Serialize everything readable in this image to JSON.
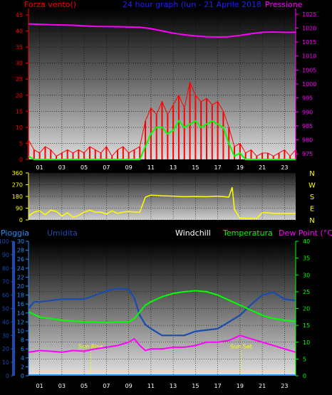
{
  "colors": {
    "wind": "#ff0000",
    "pressure": "#ff00ff",
    "title": "#2020ff",
    "windchill": "#ffffff",
    "temperature": "#00ff00",
    "dewpoint": "#ff00ff",
    "humidity": "#1a4bb0",
    "rain": "#1e90ff",
    "direction": "#ffff00",
    "sun": "#ffff00"
  },
  "chart_data": [
    {
      "type": "line",
      "title": "24 hour graph (lun - 21 Aprile 2018",
      "left_axis_label": "Forza vento()",
      "right_axis_label": "Pressione",
      "y_left_ticks": [
        "0",
        "5",
        "10",
        "15",
        "20",
        "25",
        "30",
        "35",
        "40",
        "45"
      ],
      "y_right_ticks": [
        "975",
        "980",
        "985",
        "990",
        "995",
        "1000",
        "1005",
        "1010",
        "1015",
        "1020",
        "1025"
      ],
      "x_ticks": [
        "01",
        "03",
        "05",
        "07",
        "09",
        "11",
        "13",
        "15",
        "17",
        "19",
        "21",
        "23"
      ],
      "ylim_left": [
        0,
        47
      ],
      "ylim_right": [
        973,
        1027
      ],
      "series": [
        {
          "key": "gust",
          "x": [
            0,
            0.5,
            1,
            1.5,
            2,
            2.5,
            3,
            3.5,
            4,
            4.5,
            5,
            5.5,
            6,
            6.5,
            7,
            7.5,
            8,
            8.5,
            9,
            9.5,
            10,
            10.5,
            11,
            11.5,
            12,
            12.5,
            13,
            13.5,
            14,
            14.5,
            15,
            15.5,
            16,
            16.5,
            17,
            17.5,
            18,
            18.5,
            19,
            19.5,
            20,
            20.5,
            21,
            21.5,
            22,
            22.5,
            23,
            23.5,
            24
          ],
          "values": [
            6,
            3,
            2,
            4,
            3,
            1,
            2,
            3,
            2,
            3,
            2,
            4,
            3,
            2,
            4,
            1,
            3,
            4,
            2,
            3,
            4,
            12,
            16,
            14,
            18,
            14,
            17,
            20,
            16,
            24,
            20,
            18,
            19,
            17,
            18,
            15,
            10,
            4,
            5,
            2,
            3,
            1,
            2,
            2,
            1,
            2,
            3,
            1,
            3
          ]
        },
        {
          "key": "wind",
          "x": [
            0,
            0.5,
            1,
            1.5,
            2,
            2.5,
            3,
            3.5,
            4,
            4.5,
            5,
            5.5,
            6,
            6.5,
            7,
            7.5,
            8,
            8.5,
            9,
            9.5,
            10,
            10.5,
            11,
            11.5,
            12,
            12.5,
            13,
            13.5,
            14,
            14.5,
            15,
            15.5,
            16,
            16.5,
            17,
            17.5,
            18,
            18.5,
            19,
            19.5,
            20,
            20.5,
            21,
            21.5,
            22,
            22.5,
            23,
            23.5,
            24
          ],
          "values": [
            1,
            0,
            0,
            0,
            0,
            0,
            0,
            0,
            0,
            0,
            0,
            0,
            0,
            0,
            0,
            0,
            0,
            0,
            0,
            0,
            0,
            4,
            8,
            10,
            10,
            8,
            9,
            12,
            10,
            11,
            12,
            10,
            11,
            12,
            11,
            10,
            5,
            1,
            2,
            0,
            0,
            0,
            0,
            0,
            0,
            0,
            0,
            0,
            0
          ]
        },
        {
          "key": "pressure",
          "axis": "right",
          "x": [
            0,
            2,
            4,
            6,
            8,
            10,
            11,
            12,
            13,
            14,
            15,
            16,
            17,
            18,
            19,
            20,
            21,
            22,
            23,
            24
          ],
          "values": [
            1021.5,
            1021.2,
            1021.0,
            1020.6,
            1020.5,
            1020.3,
            1019.8,
            1019.0,
            1018.2,
            1017.6,
            1017.2,
            1016.9,
            1016.8,
            1016.9,
            1017.4,
            1018.0,
            1018.5,
            1018.6,
            1018.5,
            1018.5
          ]
        }
      ]
    },
    {
      "type": "line",
      "right_axis_label": [
        "N",
        "W",
        "S",
        "E",
        "N"
      ],
      "y_ticks": [
        "0",
        "90",
        "180",
        "270",
        "360"
      ],
      "ylim": [
        0,
        360
      ],
      "series": [
        {
          "key": "direction",
          "x": [
            0,
            0.5,
            1,
            1.5,
            2,
            2.5,
            3,
            3.5,
            4,
            4.5,
            5,
            5.5,
            6,
            6.5,
            7,
            7.5,
            8,
            8.5,
            9,
            9.5,
            10,
            10.5,
            11,
            12,
            13,
            14,
            15,
            16,
            17,
            18,
            18.3,
            18.5,
            18.8,
            19,
            20,
            20.5,
            21,
            21.5,
            22,
            23,
            24
          ],
          "values": [
            30,
            60,
            70,
            40,
            75,
            65,
            30,
            55,
            20,
            35,
            60,
            75,
            60,
            60,
            45,
            70,
            50,
            60,
            65,
            60,
            60,
            175,
            190,
            185,
            182,
            178,
            180,
            178,
            182,
            175,
            250,
            80,
            40,
            15,
            10,
            10,
            55,
            55,
            50,
            50,
            50
          ]
        }
      ]
    },
    {
      "type": "line",
      "legend": [
        "Pioggia",
        "Umidita",
        "Windchill",
        "Temperatura",
        "Dew Point (°C)"
      ],
      "y_pct_ticks": [
        "0",
        "10",
        "20",
        "30",
        "40",
        "50",
        "60",
        "70",
        "80",
        "90",
        "100"
      ],
      "y_rain_ticks": [
        "0",
        "2",
        "4",
        "6",
        "8",
        "10",
        "12",
        "14",
        "16",
        "18",
        "20",
        "22",
        "24",
        "26",
        "28",
        "30"
      ],
      "y_temp_ticks": [
        "0",
        "5",
        "10",
        "15",
        "20",
        "25",
        "30",
        "35",
        "40"
      ],
      "x_ticks": [
        "01",
        "03",
        "05",
        "07",
        "09",
        "11",
        "13",
        "15",
        "17",
        "19",
        "21",
        "23"
      ],
      "annotations": {
        "sunrise": "Sun Rise",
        "sunset": "Sun Set",
        "sunrise_hour": 5.6,
        "sunset_hour": 19.1
      },
      "series": [
        {
          "key": "humidity",
          "axis": "pct",
          "x": [
            0,
            0.5,
            1,
            2,
            3,
            4,
            5,
            6,
            7,
            8,
            9,
            9.5,
            10,
            10.5,
            11,
            12,
            13,
            14,
            15,
            16,
            17,
            18,
            19,
            20,
            21,
            22,
            23,
            24
          ],
          "values": [
            50,
            55,
            55,
            56,
            57,
            57,
            57,
            60,
            63,
            65,
            64,
            58,
            45,
            38,
            35,
            30,
            30,
            30,
            33,
            34,
            35,
            40,
            45,
            53,
            60,
            62,
            57,
            56
          ]
        },
        {
          "key": "temperature",
          "axis": "temp",
          "x": [
            0,
            1,
            2,
            3,
            4,
            5,
            6,
            7,
            8,
            9,
            9.5,
            10,
            10.5,
            11,
            12,
            13,
            14,
            15,
            16,
            17,
            18,
            19,
            20,
            21,
            22,
            23,
            24
          ],
          "values": [
            19,
            17.5,
            17,
            16.5,
            16.3,
            16,
            16,
            15.8,
            16,
            16,
            17,
            19,
            21,
            22,
            23.5,
            24.5,
            25,
            25.3,
            25,
            24,
            22.5,
            21,
            19.5,
            18,
            17,
            16.5,
            16.2
          ]
        },
        {
          "key": "dewpoint",
          "axis": "temp",
          "x": [
            0,
            1,
            2,
            3,
            4,
            5,
            6,
            7,
            8,
            9,
            9.5,
            10,
            10.5,
            11,
            12,
            13,
            14,
            15,
            16,
            17,
            18,
            19,
            20,
            21,
            22,
            23,
            24
          ],
          "values": [
            7,
            7.5,
            7.3,
            7,
            7.5,
            7.3,
            8,
            8.5,
            9,
            10,
            11,
            9,
            7.5,
            8,
            8,
            8.5,
            8.5,
            9,
            10,
            10,
            10.5,
            12,
            11,
            10,
            9,
            8,
            7
          ]
        },
        {
          "key": "rain",
          "axis": "rain",
          "x": [
            0,
            24
          ],
          "values": [
            0,
            0
          ]
        }
      ]
    }
  ]
}
